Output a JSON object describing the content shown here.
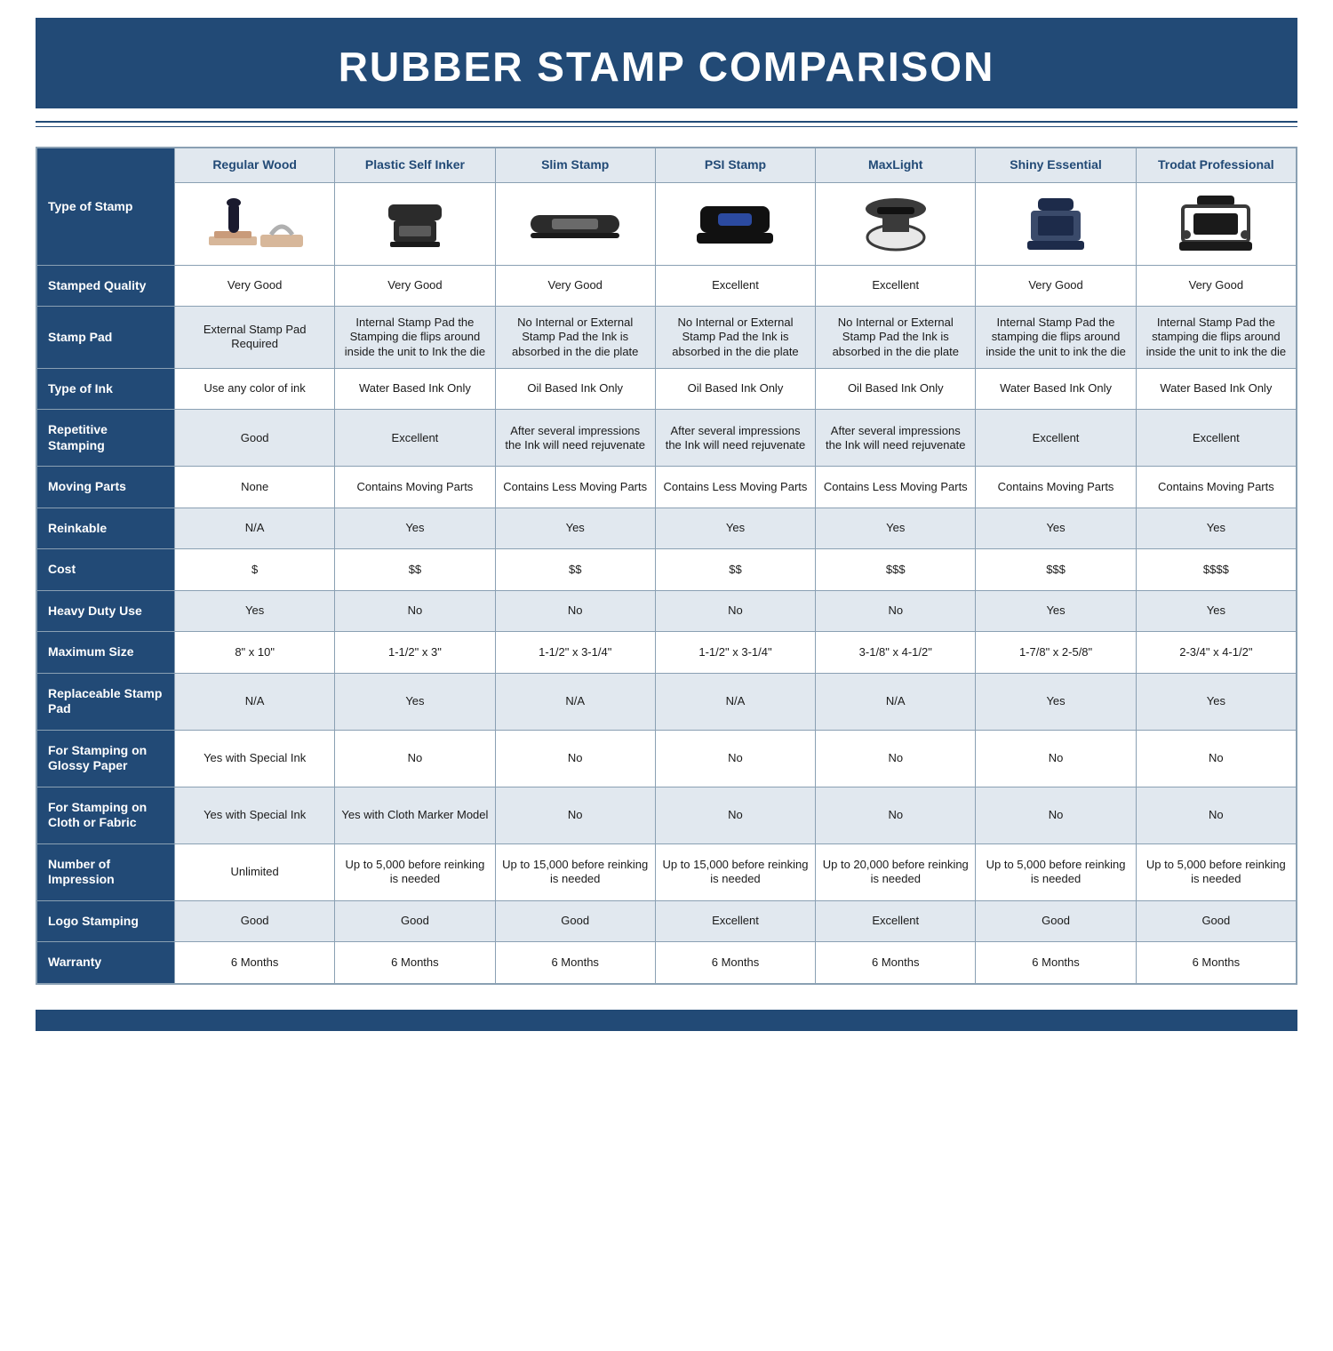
{
  "colors": {
    "brand": "#224a76",
    "headerShade": "#e1e8ef",
    "border": "#8aa0b3",
    "text": "#1a1a1a",
    "white": "#ffffff"
  },
  "title": "RUBBER STAMP COMPARISON",
  "cornerLabel": "Type of Stamp",
  "columns": [
    "Regular Wood",
    "Plastic Self Inker",
    "Slim Stamp",
    "PSI Stamp",
    "MaxLight",
    "Shiny Essential",
    "Trodat Professional"
  ],
  "rows": [
    {
      "label": "Stamped Quality",
      "cells": [
        "Very Good",
        "Very Good",
        "Very Good",
        "Excellent",
        "Excellent",
        "Very Good",
        "Very Good"
      ]
    },
    {
      "label": "Stamp Pad",
      "cells": [
        "External Stamp Pad Required",
        "Internal Stamp Pad the Stamping die flips around inside the unit to Ink the die",
        "No Internal or External Stamp Pad the Ink is absorbed in the die plate",
        "No Internal or External Stamp Pad the Ink is absorbed in the die plate",
        "No Internal or External Stamp Pad the Ink is absorbed in the die plate",
        "Internal Stamp Pad the stamping die flips around inside the unit to ink the die",
        "Internal Stamp Pad the stamping die flips around inside the unit to ink the die"
      ]
    },
    {
      "label": "Type of Ink",
      "cells": [
        "Use any color of ink",
        "Water Based Ink Only",
        "Oil Based Ink Only",
        "Oil Based Ink Only",
        "Oil Based Ink Only",
        "Water Based Ink Only",
        "Water Based Ink Only"
      ]
    },
    {
      "label": "Repetitive Stamping",
      "cells": [
        "Good",
        "Excellent",
        "After several impressions the Ink will need rejuvenate",
        "After several impressions the Ink will need rejuvenate",
        "After several impressions the Ink will need rejuvenate",
        "Excellent",
        "Excellent"
      ]
    },
    {
      "label": "Moving Parts",
      "cells": [
        "None",
        "Contains Moving Parts",
        "Contains Less Moving Parts",
        "Contains Less Moving Parts",
        "Contains Less Moving Parts",
        "Contains Moving Parts",
        "Contains Moving Parts"
      ]
    },
    {
      "label": "Reinkable",
      "cells": [
        "N/A",
        "Yes",
        "Yes",
        "Yes",
        "Yes",
        "Yes",
        "Yes"
      ]
    },
    {
      "label": "Cost",
      "cells": [
        "$",
        "$$",
        "$$",
        "$$",
        "$$$",
        "$$$",
        "$$$$"
      ]
    },
    {
      "label": "Heavy Duty Use",
      "cells": [
        "Yes",
        "No",
        "No",
        "No",
        "No",
        "Yes",
        "Yes"
      ]
    },
    {
      "label": "Maximum Size",
      "cells": [
        "8\" x 10\"",
        "1-1/2\" x 3\"",
        "1-1/2\" x 3-1/4\"",
        "1-1/2\" x 3-1/4\"",
        "3-1/8\" x 4-1/2\"",
        "1-7/8\" x 2-5/8\"",
        "2-3/4\" x 4-1/2\""
      ]
    },
    {
      "label": "Replaceable Stamp Pad",
      "cells": [
        "N/A",
        "Yes",
        "N/A",
        "N/A",
        "N/A",
        "Yes",
        "Yes"
      ]
    },
    {
      "label": "For Stamping on Glossy Paper",
      "cells": [
        "Yes with Special Ink",
        "No",
        "No",
        "No",
        "No",
        "No",
        "No"
      ]
    },
    {
      "label": "For Stamping on Cloth or Fabric",
      "cells": [
        "Yes with Special Ink",
        "Yes with Cloth Marker Model",
        "No",
        "No",
        "No",
        "No",
        "No"
      ]
    },
    {
      "label": "Number of Impression",
      "cells": [
        "Unlimited",
        "Up to 5,000 before reinking is needed",
        "Up to 15,000 before reinking is needed",
        "Up to 15,000 before reinking is needed",
        "Up to 20,000 before reinking is needed",
        "Up to 5,000 before reinking is needed",
        "Up to 5,000 before reinking is needed"
      ]
    },
    {
      "label": "Logo Stamping",
      "cells": [
        "Good",
        "Good",
        "Good",
        "Excellent",
        "Excellent",
        "Good",
        "Good"
      ]
    },
    {
      "label": "Warranty",
      "cells": [
        "6 Months",
        "6 Months",
        "6 Months",
        "6 Months",
        "6 Months",
        "6 Months",
        "6 Months"
      ]
    }
  ],
  "shadeStart": 1,
  "typography": {
    "title_fontsize": 46,
    "header_fontsize": 14,
    "cell_fontsize": 13,
    "rowhead_fontsize": 14
  },
  "icons": {
    "regular_wood": {
      "handle": "#1a1a2e",
      "wood": "#c99b7a",
      "base": "#d7b79a"
    },
    "plastic_self_inker": {
      "body": "#2b2b2b",
      "window": "#5a5a5a"
    },
    "slim_stamp": {
      "body": "#2b2b2b",
      "band": "#6a6a6a"
    },
    "psi_stamp": {
      "body": "#111111",
      "label": "#2b4aa0"
    },
    "maxlight": {
      "ring": "#3a3a3a",
      "face": "#e8e8e8",
      "label": "#111111"
    },
    "shiny_essential": {
      "body": "#1d2b4a",
      "frame": "#3a4a6a"
    },
    "trodat_professional": {
      "body": "#1a1a1a",
      "frame": "#3a3a3a"
    }
  }
}
